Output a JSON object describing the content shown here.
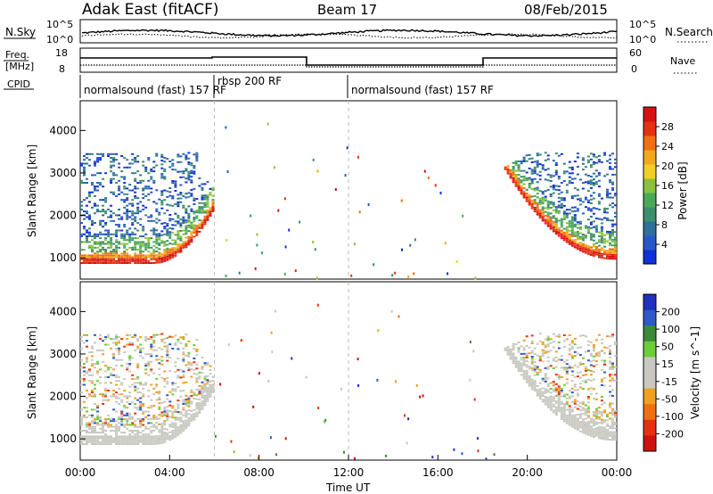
{
  "header": {
    "station": "Adak East (fitACF)",
    "beam": "Beam 17",
    "date": "08/Feb/2015"
  },
  "noise_panel": {
    "left_label": "N.Sky",
    "left_ticks": [
      "10^5",
      "10^0"
    ],
    "right_label": "N.Search",
    "right_ticks": [
      "10^5",
      "10^0"
    ]
  },
  "freq_panel": {
    "left_label_1": "Freq.",
    "left_label_2": "[MHz]",
    "left_ticks": [
      "18",
      "8"
    ],
    "right_label": "Nave",
    "right_ticks": [
      "60",
      "0"
    ]
  },
  "cpid": {
    "label": "CPID",
    "segments": [
      {
        "text": "normalsound (fast) 157 RF",
        "start_h": 0
      },
      {
        "text": "rbsp 200 RF",
        "start_h": 6
      },
      {
        "text": "normalsound (fast) 157 RF",
        "start_h": 12
      }
    ]
  },
  "colors": {
    "power_scale": [
      "#1030d8",
      "#2a57c8",
      "#2f6f9a",
      "#3c8f6a",
      "#49a85a",
      "#8ac23a",
      "#f0d020",
      "#f2a81c",
      "#f07010",
      "#e83010",
      "#d81010"
    ],
    "velocity_scale": [
      "#2030c0",
      "#2f58c8",
      "#3a8a3a",
      "#6dcc3a",
      "#c8c8c0",
      "#c8c8c0",
      "#f0a020",
      "#f07010",
      "#e83010",
      "#d01010"
    ]
  },
  "chart_data": [
    {
      "type": "heatmap",
      "name": "power",
      "ylabel": "Slant Range [km]",
      "yticks": [
        "1000",
        "2000",
        "3000",
        "4000"
      ],
      "ylim": [
        500,
        4700
      ],
      "colorbar_label": "Power [dB]",
      "colorbar_ticks": [
        "4",
        "8",
        "12",
        "16",
        "20",
        "24",
        "28"
      ],
      "colorbar_range": [
        0,
        32
      ],
      "echo_regions": [
        {
          "t_start_h": 0.0,
          "t_end_h": 6.0,
          "range_low_km": 850,
          "range_high_km": 3500,
          "peak_db": 30
        },
        {
          "t_start_h": 18.5,
          "t_end_h": 24.0,
          "range_low_km": 900,
          "range_high_km": 3500,
          "peak_db": 30
        }
      ]
    },
    {
      "type": "heatmap",
      "name": "velocity",
      "ylabel": "Slant Range [km]",
      "yticks": [
        "1000",
        "2000",
        "3000",
        "4000"
      ],
      "ylim": [
        500,
        4700
      ],
      "colorbar_label": "Velocity [m s^-1]",
      "colorbar_ticks": [
        "200",
        "100",
        "50",
        "15",
        "-15",
        "-50",
        "-100",
        "-200"
      ],
      "colorbar_range": [
        -250,
        250
      ],
      "echo_regions": [
        {
          "t_start_h": 0.0,
          "t_end_h": 6.0,
          "range_low_km": 850,
          "range_high_km": 3500,
          "dominant": "ground scatter"
        },
        {
          "t_start_h": 18.5,
          "t_end_h": 24.0,
          "range_low_km": 900,
          "range_high_km": 3500,
          "dominant": "ground scatter"
        }
      ]
    }
  ],
  "x_axis": {
    "label": "Time UT",
    "ticks": [
      "00:00",
      "04:00",
      "08:00",
      "12:00",
      "16:00",
      "20:00",
      "00:00"
    ],
    "range_h": [
      0,
      24
    ]
  }
}
